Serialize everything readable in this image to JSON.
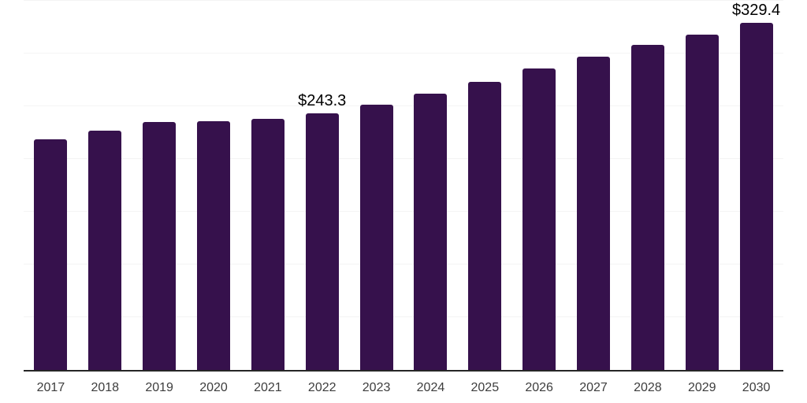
{
  "chart_data": {
    "type": "bar",
    "title": "",
    "xlabel": "",
    "ylabel": "",
    "categories": [
      "2017",
      "2018",
      "2019",
      "2020",
      "2021",
      "2022",
      "2023",
      "2024",
      "2025",
      "2026",
      "2027",
      "2028",
      "2029",
      "2030"
    ],
    "values": [
      218.6,
      226.9,
      234.8,
      235.8,
      238.4,
      243.3,
      251.7,
      262.0,
      273.4,
      285.6,
      297.0,
      308.0,
      318.2,
      329.4
    ],
    "annotations": [
      {
        "category": "2022",
        "text": "$243.3"
      },
      {
        "category": "2030",
        "text": "$329.4"
      }
    ],
    "ylim": [
      0,
      350
    ],
    "grid_step": 50,
    "grid": true,
    "legend": false,
    "colors": {
      "bar": "#36114C",
      "axis_line": "#262626",
      "grid_line": "#f4f4f4",
      "tick_label": "#3d3d3d",
      "data_label": "#000000",
      "background": "#ffffff"
    }
  }
}
